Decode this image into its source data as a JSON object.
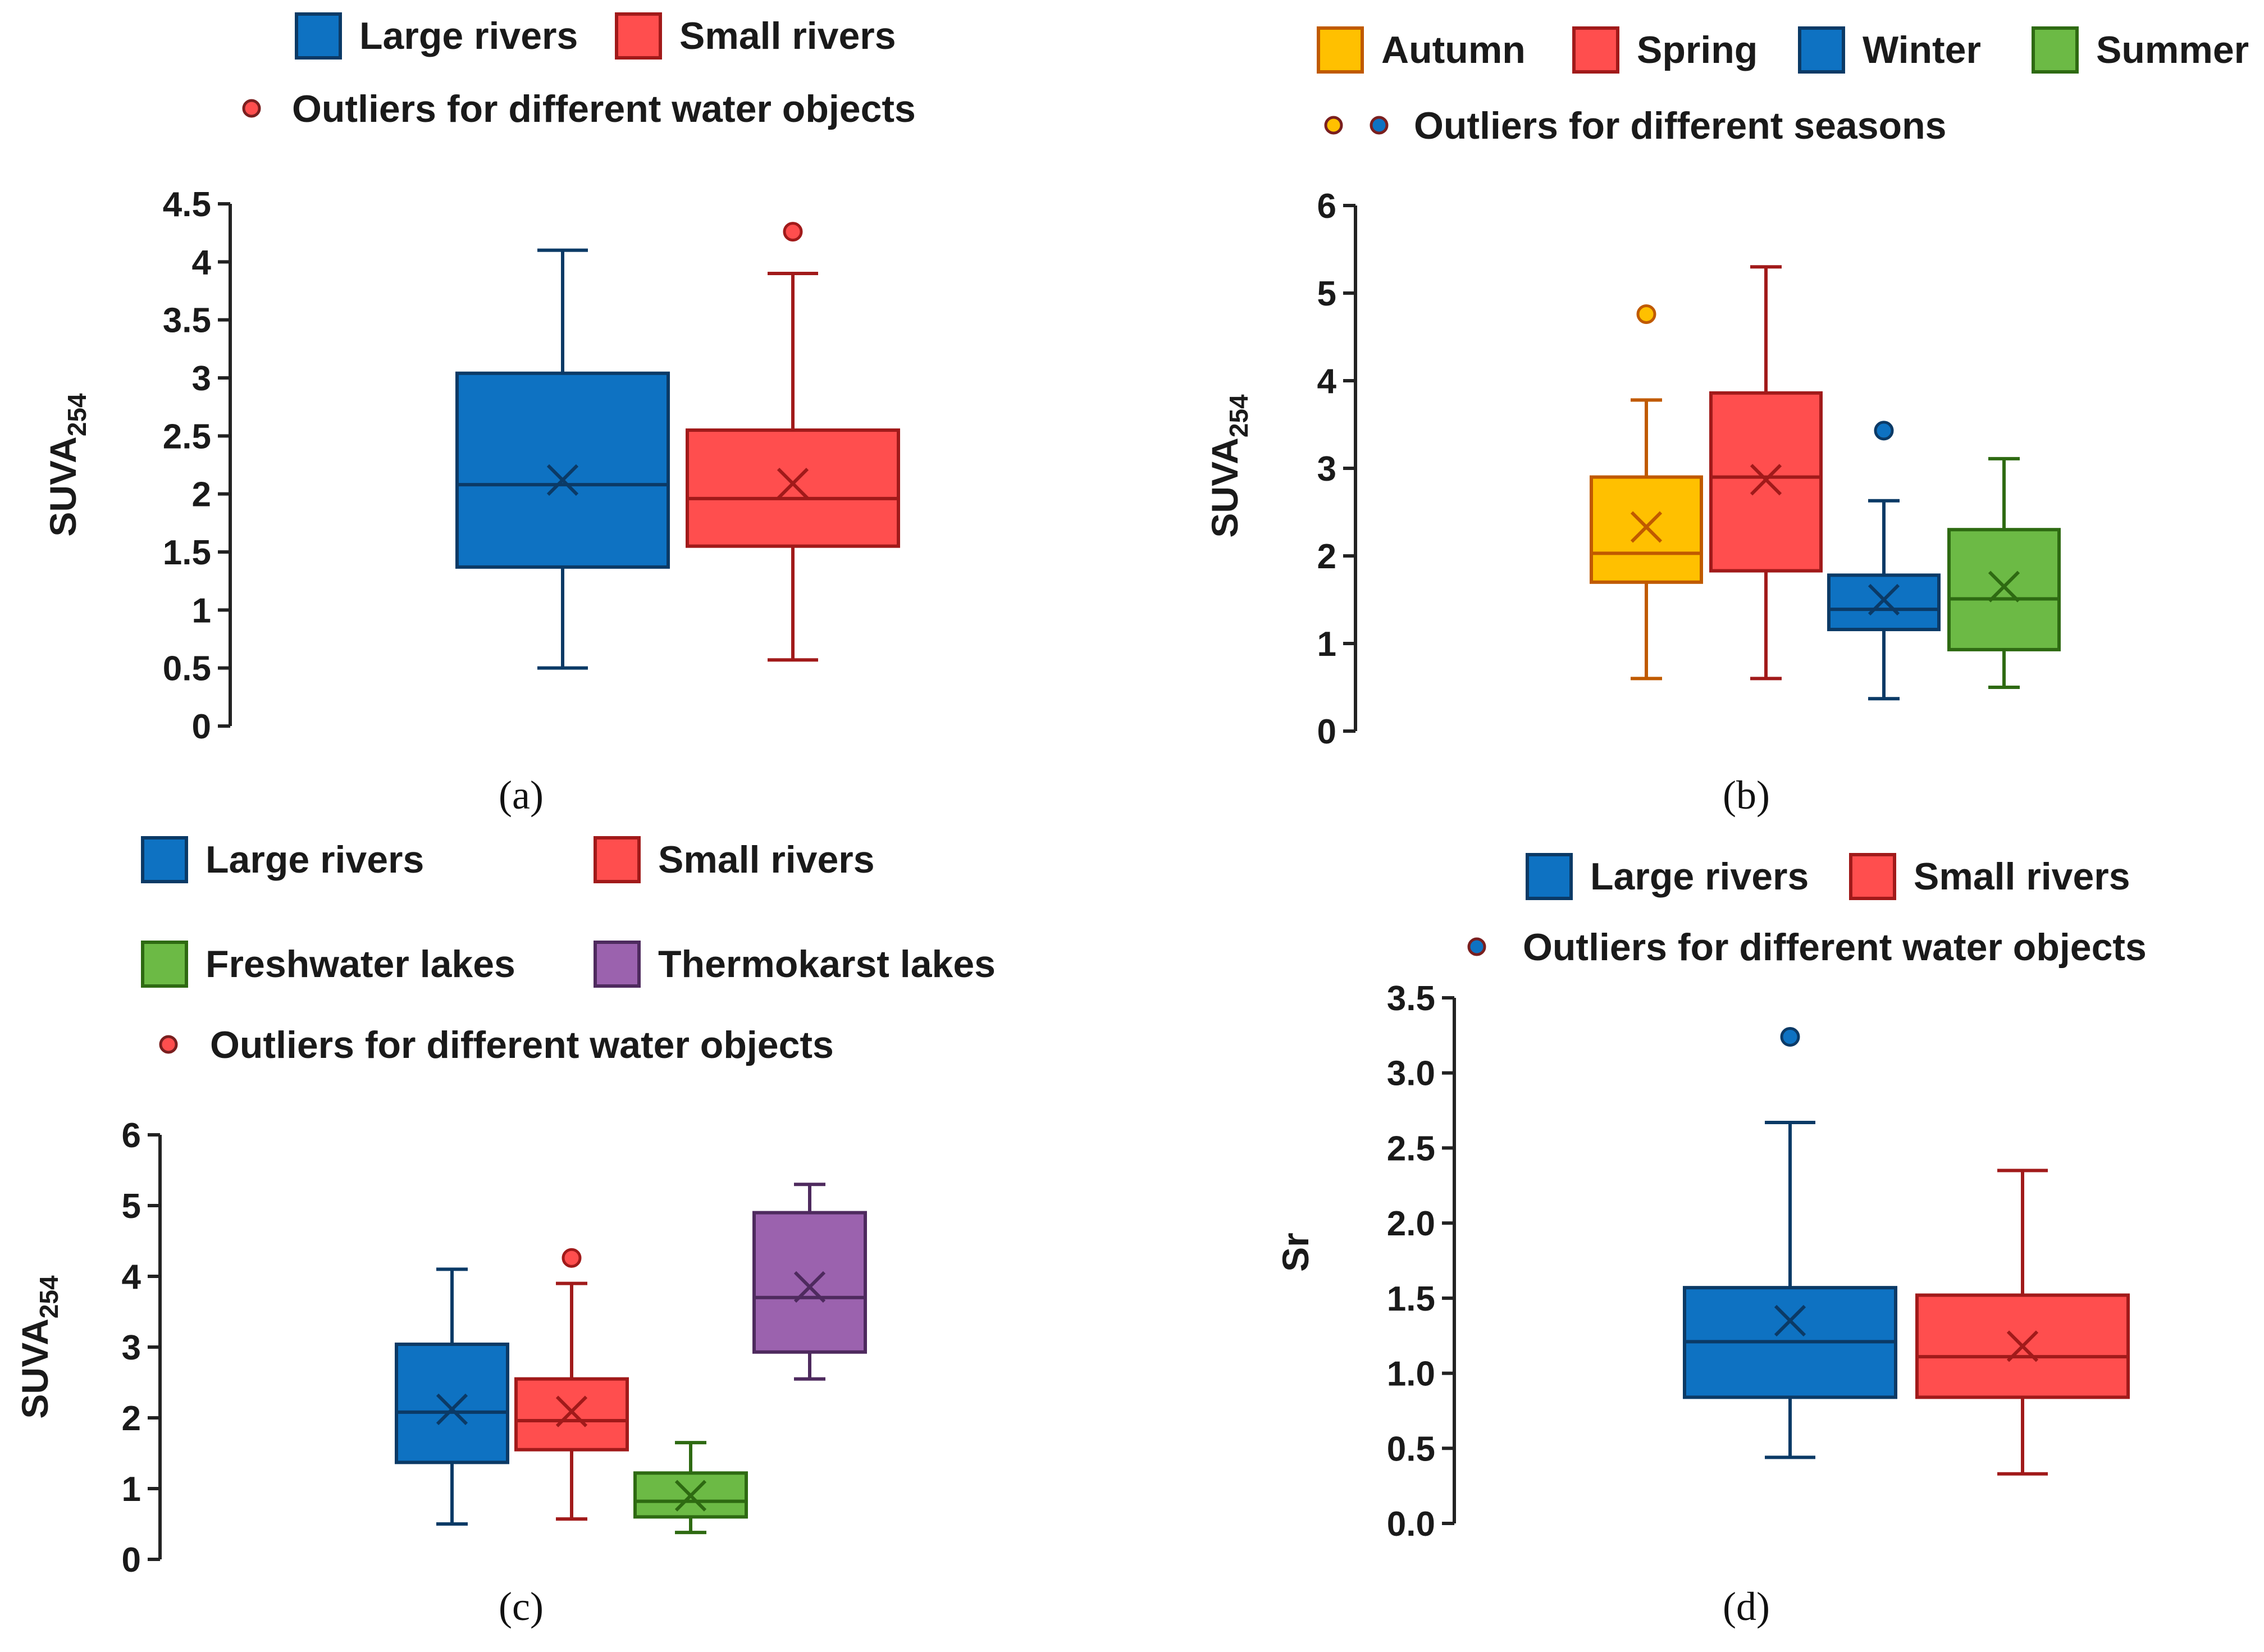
{
  "chart_data": [
    {
      "id": "a",
      "type": "box",
      "caption": "(a)",
      "ylabel": "SUVA",
      "ylabel_sub": "254",
      "ylim": [
        0,
        4.5
      ],
      "yticks": [
        "0",
        "0.5",
        "1",
        "1.5",
        "2",
        "2.5",
        "3",
        "3.5",
        "4",
        "4.5"
      ],
      "legend": {
        "items": [
          {
            "label": "Large rivers",
            "fill": "#0E72C2",
            "stroke": "#0B3A66"
          },
          {
            "label": "Small rivers",
            "fill": "#FF4E4E",
            "stroke": "#A11A1A"
          }
        ],
        "outlier_label": "Outliers for different water objects",
        "outlier_colors": [
          "#FF4E4E"
        ]
      },
      "boxes": [
        {
          "name": "Large rivers",
          "fill": "#0E72C2",
          "stroke": "#0B3A66",
          "min": 0.5,
          "q1": 1.37,
          "median": 2.08,
          "q3": 3.04,
          "max": 4.1,
          "mean": 2.12,
          "outliers": []
        },
        {
          "name": "Small rivers",
          "fill": "#FF4E4E",
          "stroke": "#A11A1A",
          "min": 0.57,
          "q1": 1.55,
          "median": 1.96,
          "q3": 2.55,
          "max": 3.9,
          "mean": 2.09,
          "outliers": [
            4.26
          ]
        }
      ]
    },
    {
      "id": "b",
      "type": "box",
      "caption": "(b)",
      "ylabel": "SUVA",
      "ylabel_sub": "254",
      "ylim": [
        0,
        6
      ],
      "yticks": [
        "0",
        "1",
        "2",
        "3",
        "4",
        "5",
        "6"
      ],
      "legend": {
        "items": [
          {
            "label": "Autumn",
            "fill": "#FFC000",
            "stroke": "#C05A00"
          },
          {
            "label": "Spring",
            "fill": "#FF4E4E",
            "stroke": "#A11A1A"
          },
          {
            "label": "Winter",
            "fill": "#0E72C2",
            "stroke": "#0B3A66"
          },
          {
            "label": "Summer",
            "fill": "#6CBA45",
            "stroke": "#2E6A12"
          }
        ],
        "outlier_label": "Outliers for different seasons",
        "outlier_colors": [
          "#FFC000",
          "#0E72C2"
        ]
      },
      "boxes": [
        {
          "name": "Autumn",
          "fill": "#FFC000",
          "stroke": "#C05A00",
          "min": 0.6,
          "q1": 1.7,
          "median": 2.03,
          "q3": 2.9,
          "max": 3.78,
          "mean": 2.33,
          "outliers": [
            4.76
          ]
        },
        {
          "name": "Spring",
          "fill": "#FF4E4E",
          "stroke": "#A11A1A",
          "min": 0.6,
          "q1": 1.83,
          "median": 2.9,
          "q3": 3.86,
          "max": 5.3,
          "mean": 2.87,
          "outliers": []
        },
        {
          "name": "Winter",
          "fill": "#0E72C2",
          "stroke": "#0B3A66",
          "min": 0.37,
          "q1": 1.16,
          "median": 1.39,
          "q3": 1.78,
          "max": 2.63,
          "mean": 1.5,
          "outliers": [
            3.43
          ]
        },
        {
          "name": "Summer",
          "fill": "#6CBA45",
          "stroke": "#2E6A12",
          "min": 0.5,
          "q1": 0.93,
          "median": 1.51,
          "q3": 2.3,
          "max": 3.11,
          "mean": 1.65,
          "outliers": []
        }
      ]
    },
    {
      "id": "c",
      "type": "box",
      "caption": "(c)",
      "ylabel": "SUVA",
      "ylabel_sub": "254",
      "ylim": [
        0,
        6
      ],
      "yticks": [
        "0",
        "1",
        "2",
        "3",
        "4",
        "5",
        "6"
      ],
      "legend": {
        "items": [
          {
            "label": "Large rivers",
            "fill": "#0E72C2",
            "stroke": "#0B3A66"
          },
          {
            "label": "Small rivers",
            "fill": "#FF4E4E",
            "stroke": "#A11A1A"
          },
          {
            "label": "Freshwater lakes",
            "fill": "#6CBA45",
            "stroke": "#2E6A12"
          },
          {
            "label": "Thermokarst lakes",
            "fill": "#9B62AE",
            "stroke": "#4E2A5E"
          }
        ],
        "outlier_label": "Outliers for different water objects",
        "outlier_colors": [
          "#FF4E4E"
        ]
      },
      "boxes": [
        {
          "name": "Large rivers",
          "fill": "#0E72C2",
          "stroke": "#0B3A66",
          "min": 0.5,
          "q1": 1.37,
          "median": 2.08,
          "q3": 3.04,
          "max": 4.1,
          "mean": 2.12,
          "outliers": []
        },
        {
          "name": "Small rivers",
          "fill": "#FF4E4E",
          "stroke": "#A11A1A",
          "min": 0.57,
          "q1": 1.55,
          "median": 1.96,
          "q3": 2.55,
          "max": 3.9,
          "mean": 2.09,
          "outliers": [
            4.26
          ]
        },
        {
          "name": "Freshwater lakes",
          "fill": "#6CBA45",
          "stroke": "#2E6A12",
          "min": 0.38,
          "q1": 0.6,
          "median": 0.82,
          "q3": 1.22,
          "max": 1.65,
          "mean": 0.9,
          "outliers": []
        },
        {
          "name": "Thermokarst lakes",
          "fill": "#9B62AE",
          "stroke": "#4E2A5E",
          "min": 2.55,
          "q1": 2.93,
          "median": 3.7,
          "q3": 4.9,
          "max": 5.3,
          "mean": 3.85,
          "outliers": []
        }
      ]
    },
    {
      "id": "d",
      "type": "box",
      "caption": "(d)",
      "ylabel": "Sr",
      "ylabel_sub": "",
      "ylim": [
        0,
        3.5
      ],
      "yticks": [
        "0.0",
        "0.5",
        "1.0",
        "1.5",
        "2.0",
        "2.5",
        "3.0",
        "3.5"
      ],
      "legend": {
        "items": [
          {
            "label": "Large rivers",
            "fill": "#0E72C2",
            "stroke": "#0B3A66"
          },
          {
            "label": "Small rivers",
            "fill": "#FF4E4E",
            "stroke": "#A11A1A"
          }
        ],
        "outlier_label": "Outliers for different water objects",
        "outlier_colors": [
          "#0E72C2"
        ]
      },
      "boxes": [
        {
          "name": "Large rivers",
          "fill": "#0E72C2",
          "stroke": "#0B3A66",
          "min": 0.44,
          "q1": 0.84,
          "median": 1.21,
          "q3": 1.57,
          "max": 2.67,
          "mean": 1.35,
          "outliers": [
            3.24
          ]
        },
        {
          "name": "Small rivers",
          "fill": "#FF4E4E",
          "stroke": "#A11A1A",
          "min": 0.33,
          "q1": 0.84,
          "median": 1.11,
          "q3": 1.52,
          "max": 2.35,
          "mean": 1.18,
          "outliers": []
        }
      ]
    }
  ]
}
